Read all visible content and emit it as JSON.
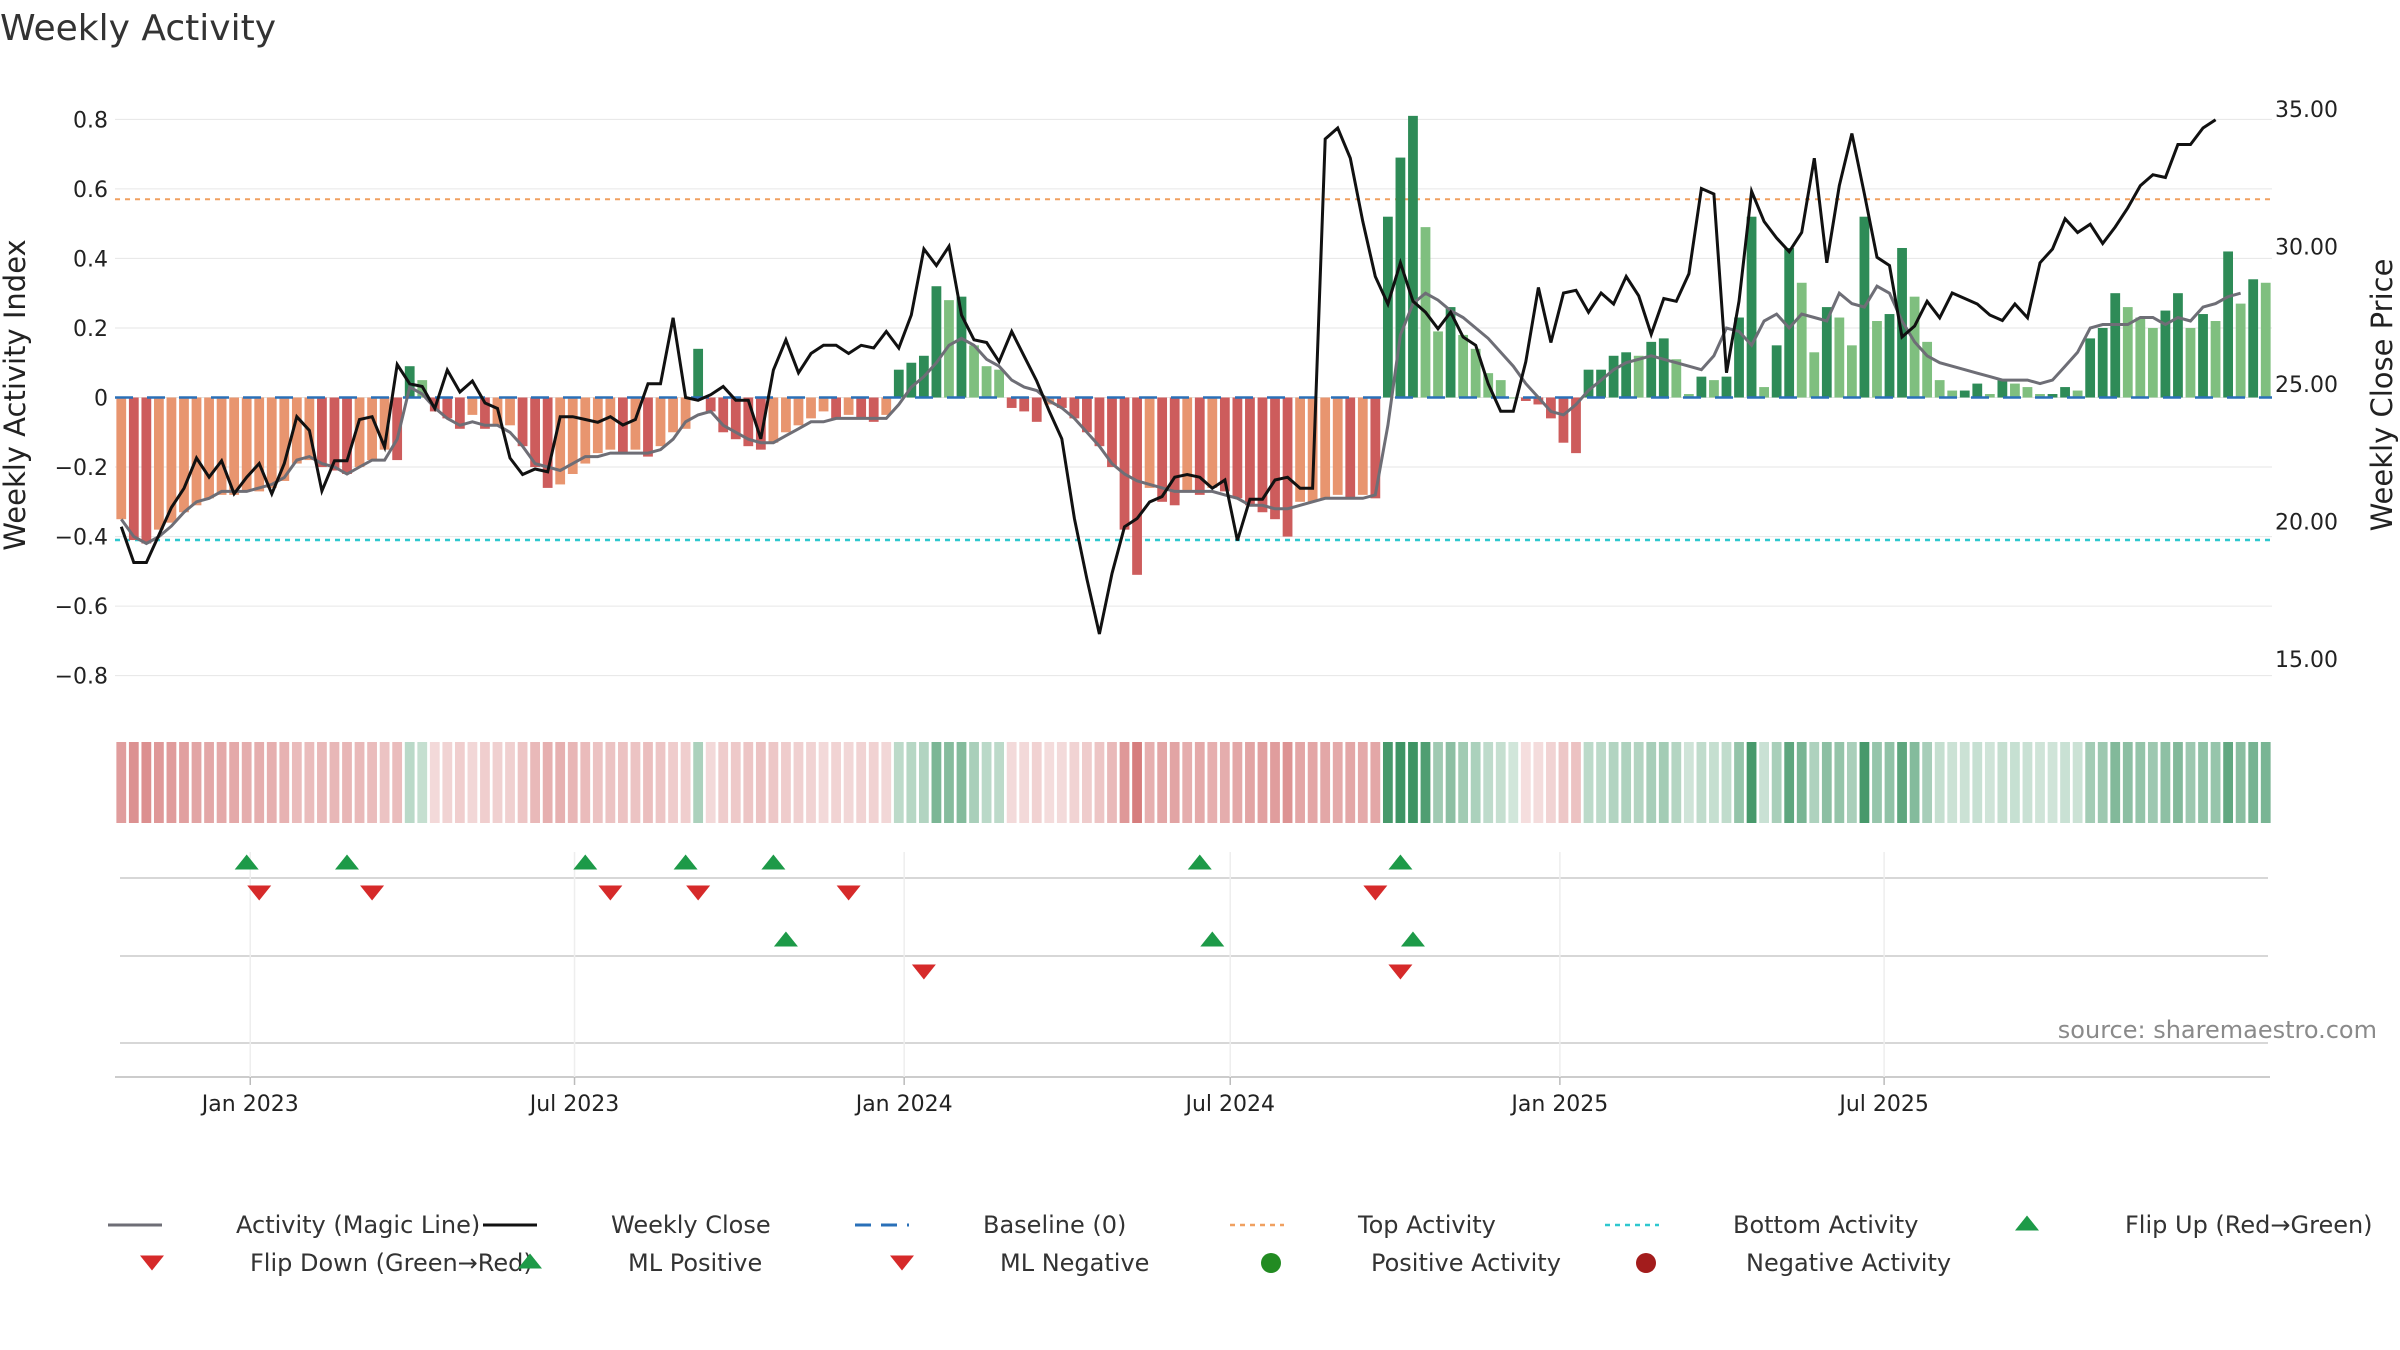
{
  "title": "Weekly Activity",
  "source": "source: sharemaestro.com",
  "colors": {
    "magic": "#6e6e76",
    "close": "#111111",
    "baseline": "#2a70b8",
    "top": "#f0a060",
    "bottom": "#2ec8cf",
    "up_marker": "#1d9a48",
    "down_marker": "#d62a2a",
    "pos_activity": "#228b22",
    "neg_activity": "#a31c1c"
  },
  "legend": [
    {
      "label": "Activity (Magic Line)",
      "kind": "line",
      "color": "#6e6e76"
    },
    {
      "label": "Weekly Close",
      "kind": "line",
      "color": "#111111"
    },
    {
      "label": "Baseline (0)",
      "kind": "dash",
      "color": "#2a70b8"
    },
    {
      "label": "Top Activity",
      "kind": "dot",
      "color": "#f0a060"
    },
    {
      "label": "Bottom Activity",
      "kind": "dot",
      "color": "#2ec8cf"
    },
    {
      "label": "Flip Up (Red→Green)",
      "kind": "up",
      "color": "#1d9a48"
    },
    {
      "label": "Flip Down (Green→Red)",
      "kind": "down",
      "color": "#d62a2a"
    },
    {
      "label": "ML Positive",
      "kind": "up",
      "color": "#1d9a48"
    },
    {
      "label": "ML Negative",
      "kind": "down",
      "color": "#d62a2a"
    },
    {
      "label": "Positive Activity",
      "kind": "circle",
      "color": "#228b22"
    },
    {
      "label": "Negative Activity",
      "kind": "circle",
      "color": "#a31c1c"
    }
  ],
  "chart_data": {
    "type": "bar",
    "title": "Weekly Activity",
    "ylabel": "Weekly Activity Index",
    "y2label": "Weekly Close Price",
    "ylim": [
      -0.87,
      0.87
    ],
    "y2lim": [
      13.5,
      35.5
    ],
    "yticks": [
      "0.8",
      "0.6",
      "0.4",
      "0.2",
      "0",
      "−0.2",
      "−0.4",
      "−0.6",
      "−0.8"
    ],
    "yticks_values": [
      0.8,
      0.6,
      0.4,
      0.2,
      0,
      -0.2,
      -0.4,
      -0.6,
      -0.8
    ],
    "y2ticks": [
      "35.00",
      "30.00",
      "25.00",
      "20.00",
      "15.00"
    ],
    "y2ticks_values": [
      35,
      30,
      25,
      20,
      15
    ],
    "xticks": [
      "Jan 2023",
      "Jul 2023",
      "Jan 2024",
      "Jul 2024",
      "Jan 2025",
      "Jul 2025"
    ],
    "xticks_dates": [
      "2023-01-01",
      "2023-07-01",
      "2024-01-01",
      "2024-07-01",
      "2025-01-01",
      "2025-07-01"
    ],
    "start_date": "2022-10-21",
    "top_activity": 0.57,
    "bottom_activity": -0.41,
    "baseline": 0,
    "activity": [
      -0.35,
      -0.41,
      -0.42,
      -0.38,
      -0.36,
      -0.33,
      -0.31,
      -0.29,
      -0.28,
      -0.28,
      -0.27,
      -0.27,
      -0.26,
      -0.24,
      -0.19,
      -0.18,
      -0.2,
      -0.21,
      -0.22,
      -0.2,
      -0.18,
      -0.15,
      -0.18,
      0.09,
      0.05,
      -0.04,
      -0.06,
      -0.09,
      -0.05,
      -0.09,
      -0.08,
      -0.08,
      -0.14,
      -0.2,
      -0.26,
      -0.25,
      -0.22,
      -0.19,
      -0.16,
      -0.15,
      -0.16,
      -0.15,
      -0.17,
      -0.14,
      -0.1,
      -0.09,
      0.14,
      -0.04,
      -0.1,
      -0.12,
      -0.14,
      -0.15,
      -0.13,
      -0.1,
      -0.08,
      -0.06,
      -0.04,
      -0.06,
      -0.05,
      -0.06,
      -0.07,
      -0.05,
      0.08,
      0.1,
      0.12,
      0.32,
      0.28,
      0.29,
      0.15,
      0.09,
      0.08,
      -0.03,
      -0.04,
      -0.07,
      -0.02,
      -0.03,
      -0.06,
      -0.1,
      -0.14,
      -0.2,
      -0.38,
      -0.51,
      -0.26,
      -0.3,
      -0.31,
      -0.27,
      -0.28,
      -0.26,
      -0.27,
      -0.29,
      -0.31,
      -0.33,
      -0.35,
      -0.4,
      -0.3,
      -0.3,
      -0.29,
      -0.28,
      -0.29,
      -0.28,
      -0.29,
      0.52,
      0.69,
      0.81,
      0.49,
      0.19,
      0.26,
      0.18,
      0.14,
      0.07,
      0.05,
      0,
      -0.01,
      -0.02,
      -0.06,
      -0.13,
      -0.16,
      0.08,
      0.08,
      0.12,
      0.13,
      0.12,
      0.16,
      0.17,
      0.11,
      0.01,
      0.06,
      0.05,
      0.06,
      0.23,
      0.52,
      0.03,
      0.15,
      0.43,
      0.33,
      0.13,
      0.26,
      0.23,
      0.15,
      0.52,
      0.22,
      0.24,
      0.43,
      0.29,
      0.16,
      0.05,
      0.02,
      0.02,
      0.04,
      0.01,
      0.05,
      0.04,
      0.03,
      0.01,
      0.01,
      0.03,
      0.02,
      0.17,
      0.2,
      0.3,
      0.26,
      0.23,
      0.2,
      0.25,
      0.3,
      0.2,
      0.24,
      0.22,
      0.42,
      0.27,
      0.34,
      0.33
    ],
    "magic_line": [
      -0.35,
      -0.4,
      -0.42,
      -0.4,
      -0.37,
      -0.33,
      -0.3,
      -0.29,
      -0.27,
      -0.27,
      -0.27,
      -0.26,
      -0.25,
      -0.23,
      -0.18,
      -0.17,
      -0.19,
      -0.2,
      -0.22,
      -0.2,
      -0.18,
      -0.18,
      -0.12,
      0.03,
      0.01,
      -0.03,
      -0.06,
      -0.08,
      -0.07,
      -0.08,
      -0.08,
      -0.1,
      -0.14,
      -0.19,
      -0.2,
      -0.21,
      -0.19,
      -0.17,
      -0.17,
      -0.16,
      -0.16,
      -0.16,
      -0.16,
      -0.15,
      -0.12,
      -0.07,
      -0.05,
      -0.04,
      -0.08,
      -0.1,
      -0.12,
      -0.13,
      -0.13,
      -0.11,
      -0.09,
      -0.07,
      -0.07,
      -0.06,
      -0.06,
      -0.06,
      -0.06,
      -0.06,
      -0.02,
      0.03,
      0.06,
      0.1,
      0.15,
      0.17,
      0.15,
      0.11,
      0.09,
      0.05,
      0.03,
      0.02,
      -0.01,
      -0.03,
      -0.06,
      -0.1,
      -0.14,
      -0.19,
      -0.22,
      -0.24,
      -0.25,
      -0.26,
      -0.27,
      -0.27,
      -0.27,
      -0.27,
      -0.28,
      -0.29,
      -0.31,
      -0.31,
      -0.32,
      -0.32,
      -0.31,
      -0.3,
      -0.29,
      -0.29,
      -0.29,
      -0.29,
      -0.28,
      -0.08,
      0.18,
      0.27,
      0.3,
      0.28,
      0.25,
      0.23,
      0.2,
      0.17,
      0.13,
      0.09,
      0.04,
      0,
      -0.04,
      -0.05,
      -0.02,
      0.02,
      0.05,
      0.08,
      0.1,
      0.11,
      0.12,
      0.11,
      0.1,
      0.09,
      0.08,
      0.12,
      0.2,
      0.19,
      0.15,
      0.22,
      0.24,
      0.2,
      0.24,
      0.23,
      0.22,
      0.3,
      0.27,
      0.26,
      0.32,
      0.3,
      0.22,
      0.16,
      0.12,
      0.1,
      0.09,
      0.08,
      0.07,
      0.06,
      0.05,
      0.05,
      0.05,
      0.04,
      0.05,
      0.09,
      0.13,
      0.2,
      0.21,
      0.21,
      0.21,
      0.23,
      0.23,
      0.21,
      0.23,
      0.22,
      0.26,
      0.27,
      0.29,
      0.3
    ],
    "weekly_close": [
      19.8,
      18.5,
      18.5,
      19.5,
      20.5,
      21.2,
      22.3,
      21.6,
      22.2,
      21.0,
      21.6,
      22.1,
      21.0,
      22.1,
      23.8,
      23.3,
      21.1,
      22.2,
      22.2,
      23.7,
      23.8,
      22.7,
      25.7,
      25.0,
      24.9,
      24.1,
      25.5,
      24.7,
      25.1,
      24.3,
      24.1,
      22.3,
      21.7,
      21.9,
      21.8,
      23.8,
      23.8,
      23.7,
      23.6,
      23.8,
      23.5,
      23.7,
      25.0,
      25.0,
      27.4,
      24.5,
      24.4,
      24.6,
      24.9,
      24.4,
      24.4,
      23.0,
      25.5,
      26.6,
      25.4,
      26.1,
      26.4,
      26.4,
      26.1,
      26.4,
      26.3,
      26.9,
      26.3,
      27.5,
      29.9,
      29.3,
      30.0,
      27.5,
      26.6,
      26.5,
      25.8,
      26.9,
      26.0,
      25.1,
      24.0,
      23.0,
      20.1,
      17.9,
      15.9,
      18.1,
      19.8,
      20.1,
      20.7,
      20.9,
      21.6,
      21.7,
      21.6,
      21.2,
      21.5,
      19.3,
      20.8,
      20.8,
      21.5,
      21.6,
      21.2,
      21.2,
      33.9,
      34.3,
      33.2,
      30.9,
      28.9,
      27.9,
      29.4,
      28.0,
      27.6,
      27.0,
      27.6,
      26.7,
      26.4,
      25.0,
      24.0,
      24.0,
      25.8,
      28.5,
      26.5,
      28.3,
      28.4,
      27.6,
      28.3,
      27.9,
      28.9,
      28.2,
      26.8,
      28.1,
      28.0,
      29.0,
      32.1,
      31.9,
      25.4,
      28.0,
      32.0,
      30.9,
      30.3,
      29.8,
      30.5,
      33.2,
      29.4,
      32.2,
      34.1,
      31.9,
      29.6,
      29.3,
      26.7,
      27.1,
      28.0,
      27.4,
      28.3,
      28.1,
      27.9,
      27.5,
      27.3,
      27.9,
      27.4,
      29.4,
      29.9,
      31.0,
      30.5,
      30.8,
      30.1,
      30.7,
      31.4,
      32.2,
      32.6,
      32.5,
      33.7,
      33.7,
      34.3,
      34.6
    ],
    "flip_up": [
      "2022-12-30",
      "2023-02-24",
      "2023-07-07",
      "2023-09-01",
      "2023-10-20",
      "2024-06-14",
      "2024-10-04"
    ],
    "flip_down": [
      "2023-01-06",
      "2023-03-10",
      "2023-07-21",
      "2023-09-08",
      "2023-12-01",
      "2024-09-20"
    ],
    "ml_positive": [
      "2023-10-27",
      "2024-06-21",
      "2024-10-11"
    ],
    "ml_negative": [
      "2024-01-12",
      "2024-10-04"
    ]
  }
}
